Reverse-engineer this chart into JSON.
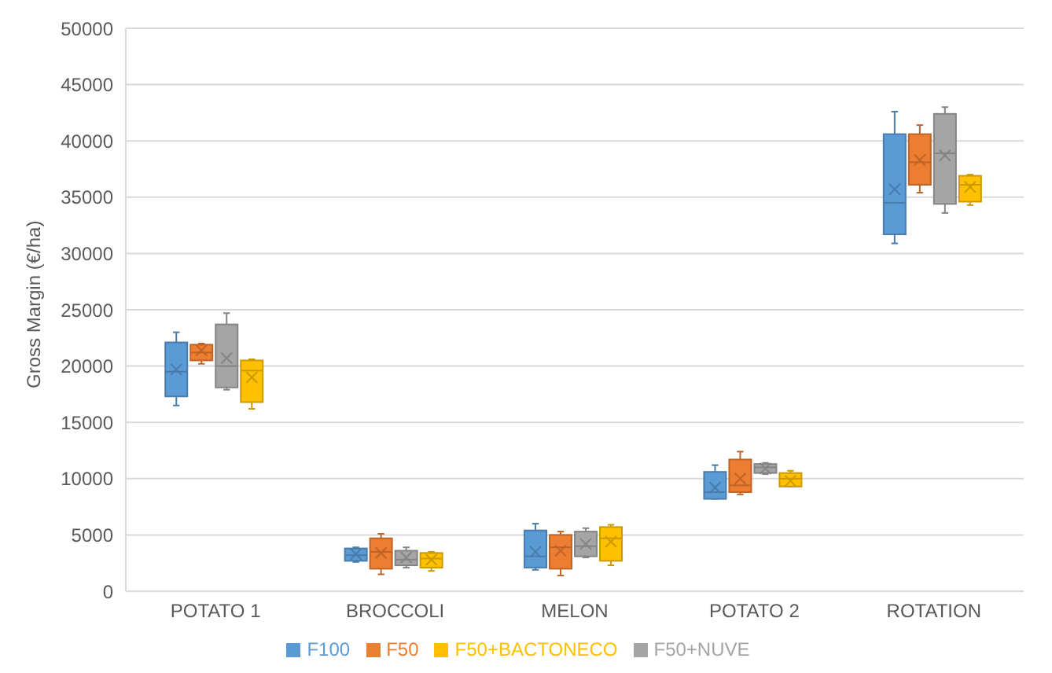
{
  "chart_data": {
    "type": "box",
    "ylabel": "Gross Margin (€/ha)",
    "categories": [
      "POTATO 1",
      "BROCCOLI",
      "MELON",
      "POTATO 2",
      "ROTATION"
    ],
    "ylim": [
      0,
      50000
    ],
    "yticks": [
      0,
      5000,
      10000,
      15000,
      20000,
      25000,
      30000,
      35000,
      40000,
      45000,
      50000
    ],
    "grid": "y",
    "legend": "bottom",
    "series": [
      {
        "name": "F100",
        "color": "#5b9bd5",
        "boxes": [
          {
            "low": 16500,
            "q1": 17300,
            "median": 19500,
            "q3": 22100,
            "high": 23000,
            "mean": 19700
          },
          {
            "low": 2600,
            "q1": 2700,
            "median": 3200,
            "q3": 3800,
            "high": 3900,
            "mean": 3300
          },
          {
            "low": 1900,
            "q1": 2100,
            "median": 3100,
            "q3": 5400,
            "high": 6000,
            "mean": 3500
          },
          {
            "low": 8200,
            "q1": 8200,
            "median": 8800,
            "q3": 10600,
            "high": 11200,
            "mean": 9200
          },
          {
            "low": 30900,
            "q1": 31700,
            "median": 34500,
            "q3": 40600,
            "high": 42600,
            "mean": 35700
          }
        ]
      },
      {
        "name": "F50",
        "color": "#ed7d31",
        "boxes": [
          {
            "low": 20200,
            "q1": 20500,
            "median": 21200,
            "q3": 21900,
            "high": 22000,
            "mean": 21400
          },
          {
            "low": 1500,
            "q1": 2000,
            "median": 3500,
            "q3": 4700,
            "high": 5100,
            "mean": 3400
          },
          {
            "low": 1400,
            "q1": 2000,
            "median": 3900,
            "q3": 5000,
            "high": 5300,
            "mean": 3600
          },
          {
            "low": 8600,
            "q1": 8800,
            "median": 9400,
            "q3": 11700,
            "high": 12400,
            "mean": 10000
          },
          {
            "low": 35400,
            "q1": 36100,
            "median": 38100,
            "q3": 40600,
            "high": 41400,
            "mean": 38300
          }
        ]
      },
      {
        "name": "F50+NUVE",
        "color": "#a5a5a5",
        "boxes": [
          {
            "low": 17900,
            "q1": 18100,
            "median": 20000,
            "q3": 23700,
            "high": 24700,
            "mean": 20700
          },
          {
            "low": 2100,
            "q1": 2300,
            "median": 2800,
            "q3": 3600,
            "high": 3900,
            "mean": 3000
          },
          {
            "low": 3000,
            "q1": 3100,
            "median": 4000,
            "q3": 5300,
            "high": 5600,
            "mean": 4200
          },
          {
            "low": 10400,
            "q1": 10500,
            "median": 11000,
            "q3": 11300,
            "high": 11400,
            "mean": 10900
          },
          {
            "low": 33600,
            "q1": 34400,
            "median": 38900,
            "q3": 42400,
            "high": 43000,
            "mean": 38700
          }
        ]
      },
      {
        "name": "F50+BACTONECO",
        "color": "#ffc000",
        "boxes": [
          {
            "low": 16200,
            "q1": 16800,
            "median": 19600,
            "q3": 20500,
            "high": 20600,
            "mean": 19000
          },
          {
            "low": 1800,
            "q1": 2100,
            "median": 2900,
            "q3": 3400,
            "high": 3500,
            "mean": 2800
          },
          {
            "low": 2300,
            "q1": 2700,
            "median": 4700,
            "q3": 5700,
            "high": 5900,
            "mean": 4400
          },
          {
            "low": 9300,
            "q1": 9300,
            "median": 10000,
            "q3": 10500,
            "high": 10700,
            "mean": 9800
          },
          {
            "low": 34300,
            "q1": 34600,
            "median": 36100,
            "q3": 36900,
            "high": 37000,
            "mean": 35900
          }
        ]
      }
    ]
  }
}
